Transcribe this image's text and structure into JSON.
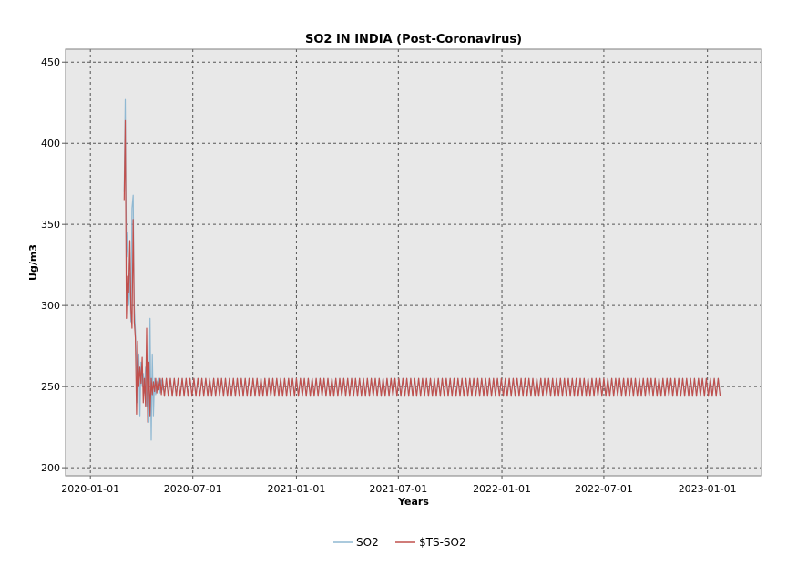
{
  "chart_data": {
    "type": "line",
    "title": "SO2 IN INDIA (Post-Coronavirus)",
    "xlabel": "Years",
    "ylabel": "Ug/m3",
    "x_ticks": [
      "2020-01-01",
      "2020-07-01",
      "2021-01-01",
      "2021-07-01",
      "2022-01-01",
      "2022-07-01",
      "2023-01-01"
    ],
    "y_ticks": [
      200,
      250,
      300,
      350,
      400,
      450
    ],
    "ylim": [
      195,
      458
    ],
    "xlim": [
      "2019-11-18",
      "2023-04-07"
    ],
    "grid": true,
    "legend_position": "bottom-center",
    "background_color": "#e8e8e8",
    "series": [
      {
        "name": "SO2",
        "color": "#8fb8d2",
        "x": [
          "2020-03-01",
          "2020-03-03",
          "2020-03-05",
          "2020-03-07",
          "2020-03-09",
          "2020-03-11",
          "2020-03-13",
          "2020-03-15",
          "2020-03-17",
          "2020-03-19",
          "2020-03-21",
          "2020-03-23",
          "2020-03-25",
          "2020-03-27",
          "2020-03-29",
          "2020-03-31",
          "2020-04-02",
          "2020-04-04",
          "2020-04-06",
          "2020-04-08",
          "2020-04-10",
          "2020-04-12",
          "2020-04-14",
          "2020-04-16",
          "2020-04-18",
          "2020-04-20",
          "2020-04-22",
          "2020-04-24",
          "2020-04-26",
          "2020-04-28",
          "2020-04-30",
          "2020-05-02",
          "2020-05-04",
          "2020-05-06",
          "2020-05-08"
        ],
        "values": [
          370,
          427,
          330,
          345,
          300,
          320,
          290,
          360,
          368,
          300,
          285,
          262,
          240,
          270,
          232,
          265,
          250,
          258,
          246,
          262,
          238,
          250,
          228,
          292,
          217,
          270,
          232,
          255,
          245,
          253,
          247,
          255,
          246,
          254,
          248
        ]
      },
      {
        "name": "$TS-SO2",
        "color": "#c0504d",
        "x": [
          "2020-03-01",
          "2020-03-03",
          "2020-03-05",
          "2020-03-07",
          "2020-03-09",
          "2020-03-11",
          "2020-03-13",
          "2020-03-15",
          "2020-03-17",
          "2020-03-19",
          "2020-03-21",
          "2020-03-23",
          "2020-03-25",
          "2020-03-27",
          "2020-03-29",
          "2020-03-31",
          "2020-04-02",
          "2020-04-04",
          "2020-04-06",
          "2020-04-08",
          "2020-04-10",
          "2020-04-12",
          "2020-04-14",
          "2020-04-16",
          "2020-04-18",
          "2020-04-20",
          "2020-04-22",
          "2020-04-24",
          "2020-04-26",
          "2020-04-28",
          "2020-04-30",
          "2020-05-02",
          "2020-05-04",
          "2020-05-06",
          "2020-05-08"
        ],
        "values": [
          365,
          414,
          292,
          318,
          308,
          340,
          298,
          286,
          353,
          290,
          280,
          233,
          278,
          250,
          262,
          252,
          268,
          240,
          255,
          238,
          286,
          228,
          265,
          232,
          255,
          245,
          253,
          247,
          255,
          246,
          254,
          248,
          255,
          245,
          252
        ]
      }
    ],
    "steady_state": {
      "start": "2020-05-08",
      "end": "2023-01-20",
      "period_days": 7,
      "high": 255,
      "low": 244
    }
  }
}
